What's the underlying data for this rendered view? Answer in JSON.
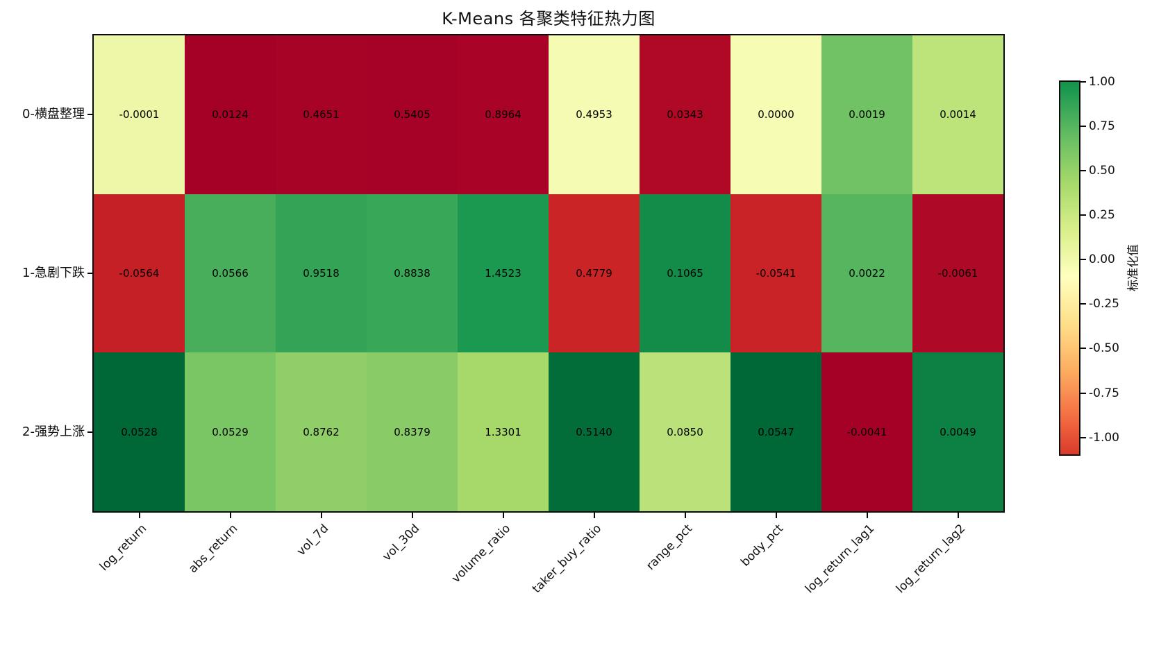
{
  "chart_data": {
    "type": "heatmap",
    "title": "K-Means 各聚类特征热力图",
    "x_tick_labels": [
      "log_return",
      "abs_return",
      "vol_7d",
      "vol_30d",
      "volume_ratio",
      "taker_buy_ratio",
      "range_pct",
      "body_pct",
      "log_return_lag1",
      "log_return_lag2"
    ],
    "y_tick_labels": [
      "0-横盘整理",
      "1-急剧下跌",
      "2-强势上涨"
    ],
    "cell_values": [
      [
        "-0.0001",
        "0.0124",
        "0.4651",
        "0.5405",
        "0.8964",
        "0.4953",
        "0.0343",
        "0.0000",
        "0.0019",
        "0.0014"
      ],
      [
        "-0.0564",
        "0.0566",
        "0.9518",
        "0.8838",
        "1.4523",
        "0.4779",
        "0.1065",
        "-0.0541",
        "0.0022",
        "-0.0061"
      ],
      [
        "0.0528",
        "0.0529",
        "0.8762",
        "0.8379",
        "1.3301",
        "0.5140",
        "0.0850",
        "0.0547",
        "-0.0041",
        "0.0049"
      ]
    ],
    "cell_colors": [
      [
        "#eef7a7",
        "#a50026",
        "#a70327",
        "#a60127",
        "#a90427",
        "#f5fbb2",
        "#af0926",
        "#f7fcb4",
        "#71c264",
        "#bde37b"
      ],
      [
        "#c62027",
        "#48ae5b",
        "#33a456",
        "#39a758",
        "#1c9950",
        "#cb2427",
        "#138b49",
        "#ca2327",
        "#56b55f",
        "#ae0926"
      ],
      [
        "#006837",
        "#7ac665",
        "#90cf68",
        "#89cc67",
        "#a6d96a",
        "#036d3a",
        "#bbe27a",
        "#006837",
        "#a50026",
        "#0d8044"
      ]
    ],
    "value_text_color": "#000000",
    "colorbar": {
      "label": "标准化值",
      "tick_labels": [
        "1.00",
        "0.75",
        "0.50",
        "0.25",
        "0.00",
        "-0.25",
        "-0.50",
        "-0.75",
        "-1.00"
      ],
      "gradient_stops": [
        {
          "color": "#16914a",
          "pos": 0
        },
        {
          "color": "#1a9850",
          "pos": 2
        },
        {
          "color": "#66bd63",
          "pos": 14.6
        },
        {
          "color": "#a6d96a",
          "pos": 27.1
        },
        {
          "color": "#d9ef8b",
          "pos": 39.7
        },
        {
          "color": "#ffffbf",
          "pos": 52.2
        },
        {
          "color": "#fee08b",
          "pos": 64.8
        },
        {
          "color": "#fdae61",
          "pos": 77.3
        },
        {
          "color": "#f46d43",
          "pos": 89.9
        },
        {
          "color": "#d93a2b",
          "pos": 100
        }
      ]
    }
  }
}
